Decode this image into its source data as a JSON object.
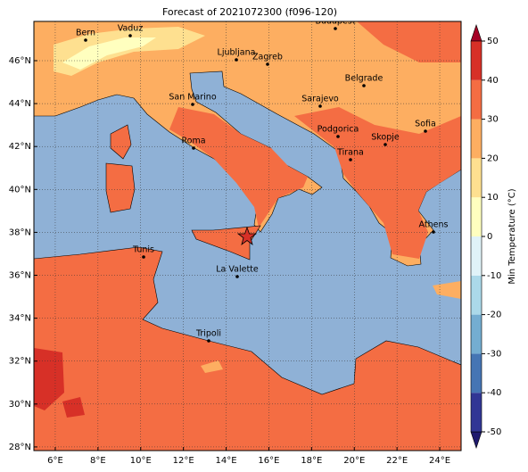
{
  "title": "Forecast of 2021072300 (f096-120)",
  "map": {
    "lon_lim": [
      5,
      25
    ],
    "lat_lim": [
      27.83,
      47.83
    ],
    "lon_ticks": [
      {
        "value": 6,
        "label": "6°E"
      },
      {
        "value": 8,
        "label": "8°E"
      },
      {
        "value": 10,
        "label": "10°E"
      },
      {
        "value": 12,
        "label": "12°E"
      },
      {
        "value": 14,
        "label": "14°E"
      },
      {
        "value": 16,
        "label": "16°E"
      },
      {
        "value": 18,
        "label": "18°E"
      },
      {
        "value": 20,
        "label": "20°E"
      },
      {
        "value": 22,
        "label": "22°E"
      },
      {
        "value": 24,
        "label": "24°E"
      }
    ],
    "lat_ticks": [
      {
        "value": 28,
        "label": "28°N"
      },
      {
        "value": 30,
        "label": "30°N"
      },
      {
        "value": 32,
        "label": "32°N"
      },
      {
        "value": 34,
        "label": "34°N"
      },
      {
        "value": 36,
        "label": "36°N"
      },
      {
        "value": 38,
        "label": "38°N"
      },
      {
        "value": 40,
        "label": "40°N"
      },
      {
        "value": 42,
        "label": "42°N"
      },
      {
        "value": 44,
        "label": "44°N"
      },
      {
        "value": 46,
        "label": "46°N"
      }
    ],
    "cities": [
      "Bern",
      "Vaduz",
      "Ljubljana",
      "Zagreb",
      "Budapest",
      "Belgrade",
      "Sarajevo",
      "San Marino",
      "Roma",
      "Podgorica",
      "Skopje",
      "Sofia",
      "Tirana",
      "Athens",
      "Tunis",
      "La Valette",
      "Tripoli"
    ]
  },
  "colorbar": {
    "label": "Min Temperature (°C)",
    "lim": [
      -50,
      50
    ],
    "ticks": [
      -50,
      -40,
      -30,
      -20,
      -10,
      0,
      10,
      20,
      30,
      40,
      50
    ],
    "colors": [
      "#313695",
      "#4575b4",
      "#74add1",
      "#abd9e9",
      "#e0f3f8",
      "#ffffbf",
      "#fee090",
      "#fdae61",
      "#f46d43",
      "#d73027"
    ]
  }
}
